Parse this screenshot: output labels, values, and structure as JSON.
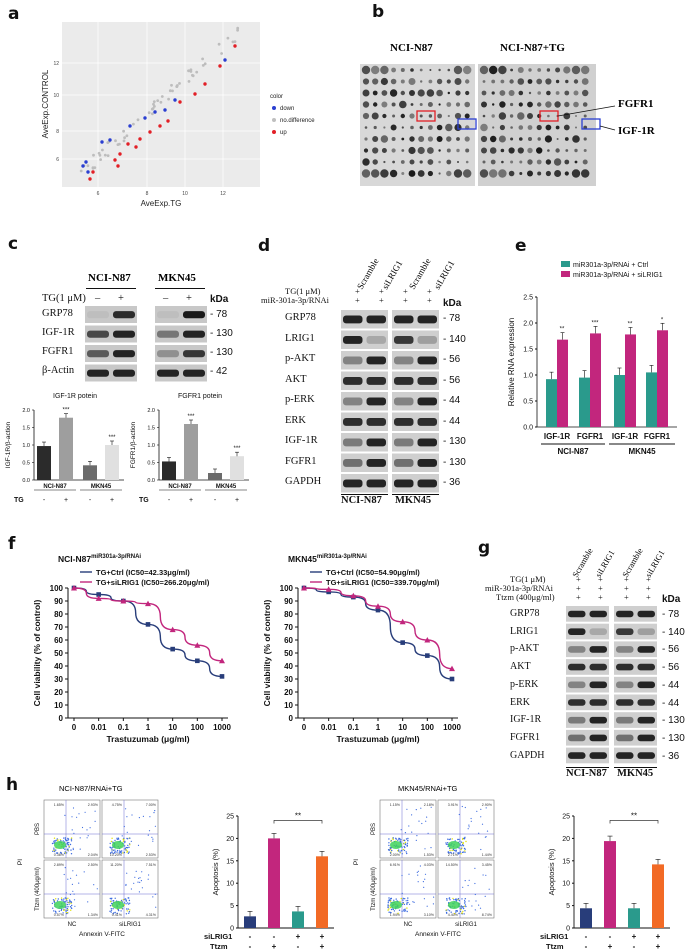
{
  "panels": {
    "a": "a",
    "b": "b",
    "c": "c",
    "d": "d",
    "e": "e",
    "f": "f",
    "g": "g",
    "h": "h"
  },
  "colors": {
    "teal": "#2a9a8c",
    "magenta": "#c2267d",
    "navy": "#283d7a",
    "orange": "#f26a25",
    "gray": "#9e9e9e",
    "dark": "#333333",
    "red": "#e21f26",
    "blue": "#2b3fd1"
  },
  "panel_a": {
    "xlabel": "AveExp.TG",
    "ylabel": "AveExp.CONTROL",
    "x_ticks": [
      "6",
      "8",
      "10",
      "12"
    ],
    "y_ticks": [
      "6",
      "8",
      "10",
      "12"
    ],
    "legend_title": "color",
    "legend_items": [
      "down",
      "no.difference",
      "up"
    ]
  },
  "panel_b": {
    "title_left": "NCI-N87",
    "title_right": "NCI-N87+TG",
    "label_fgfr1": "FGFR1",
    "label_igf1r": "IGF-1R"
  },
  "panel_c": {
    "cell_left": "NCI-N87",
    "cell_right": "MKN45",
    "treatment": "TG(1 μM)",
    "signs": [
      "–",
      "+",
      "–",
      "+"
    ],
    "kda": "kDa",
    "proteins": [
      {
        "name": "GRP78",
        "kda": "- 78"
      },
      {
        "name": "IGF-1R",
        "kda": "- 130"
      },
      {
        "name": "FGFR1",
        "kda": "- 130"
      },
      {
        "name": "β-Actin",
        "kda": "- 42"
      }
    ]
  },
  "chart_data": [
    {
      "type": "bar",
      "title": "IGF-1R potein",
      "ylabel": "IGF-1R/β-action",
      "ylim": [
        0,
        2.0
      ],
      "y_ticks": [
        "0.0",
        "0.5",
        "1.0",
        "1.5",
        "2.0"
      ],
      "categories": [
        "NCI-N87 −",
        "NCI-N87 +",
        "MKN45 −",
        "MKN45 +"
      ],
      "values": [
        0.97,
        1.78,
        0.42,
        1.0
      ],
      "group_labels": [
        "NCI-N87",
        "MKN45"
      ],
      "tg_label": "TG",
      "tg_signs": [
        "-",
        "+",
        "-",
        "+"
      ],
      "sig": [
        "",
        "***",
        "",
        "***"
      ]
    },
    {
      "type": "bar",
      "title": "FGFR1 potein",
      "ylabel": "FGFR1/β-action",
      "ylim": [
        0,
        2.0
      ],
      "y_ticks": [
        "0.0",
        "0.5",
        "1.0",
        "1.5",
        "2.0"
      ],
      "categories": [
        "NCI-N87 −",
        "NCI-N87 +",
        "MKN45 −",
        "MKN45 +"
      ],
      "values": [
        0.53,
        1.6,
        0.2,
        0.68
      ],
      "group_labels": [
        "NCI-N87",
        "MKN45"
      ],
      "tg_label": "TG",
      "tg_signs": [
        "-",
        "+",
        "-",
        "+"
      ],
      "sig": [
        "",
        "***",
        "",
        "***"
      ]
    },
    {
      "type": "bar",
      "ylabel": "Relative RNA expression",
      "ylim": [
        0,
        2.5
      ],
      "y_ticks": [
        "0.0",
        "0.5",
        "1.0",
        "1.5",
        "2.0",
        "2.5"
      ],
      "categories": [
        "IGF-1R",
        "FGFR1",
        "IGF-1R",
        "FGFR1"
      ],
      "group_labels": [
        "NCI-N87",
        "MKN45"
      ],
      "series": [
        {
          "name": "miR301a-3p/RNAi + Ctrl",
          "values": [
            0.92,
            0.95,
            1.0,
            1.05
          ]
        },
        {
          "name": "miR301a-3p/RNAi + siLRIG1",
          "values": [
            1.68,
            1.8,
            1.78,
            1.86
          ]
        }
      ],
      "sig": [
        "**",
        "***",
        "**",
        "*"
      ]
    },
    {
      "type": "line",
      "title_main": "NCI-N87",
      "title_sup": "miR301a-3p/RNAi",
      "xlabel": "Trastuzumab (μg/ml)",
      "ylabel": "Cell viability (% of control)",
      "ylim": [
        0,
        100
      ],
      "x_ticks": [
        "0",
        "0.01",
        "0.1",
        "1",
        "10",
        "100",
        "1000"
      ],
      "y_ticks": [
        "0",
        "10",
        "20",
        "30",
        "40",
        "50",
        "60",
        "70",
        "80",
        "90",
        "100"
      ],
      "series": [
        {
          "name": "TG+Ctrl (IC50=42.33μg/ml)",
          "values": [
            100,
            95,
            90,
            72,
            53,
            44,
            32
          ]
        },
        {
          "name": "TG+siLRIG1 (IC50=266.20μg/ml)",
          "values": [
            100,
            92,
            90,
            88,
            68,
            56,
            44
          ]
        }
      ]
    },
    {
      "type": "line",
      "title_main": "MKN45",
      "title_sup": "miR301a-3p/RNAi",
      "xlabel": "Trastuzumab (μg/ml)",
      "ylabel": "Cell viability (% of control)",
      "ylim": [
        0,
        100
      ],
      "x_ticks": [
        "0",
        "0.01",
        "0.1",
        "1",
        "10",
        "100",
        "1000"
      ],
      "y_ticks": [
        "0",
        "10",
        "20",
        "30",
        "40",
        "50",
        "60",
        "70",
        "80",
        "90",
        "100"
      ],
      "series": [
        {
          "name": "TG+Ctrl (IC50=54.90μg/ml)",
          "values": [
            100,
            97,
            93,
            83,
            58,
            48,
            30
          ]
        },
        {
          "name": "TG+siLRIG1 (IC50=339.70μg/ml)",
          "values": [
            100,
            99,
            94,
            86,
            74,
            60,
            38
          ]
        }
      ]
    },
    {
      "type": "bar",
      "ylabel": "Apoptosis (%)",
      "ylim": [
        0,
        25
      ],
      "y_ticks": [
        "0",
        "5",
        "10",
        "15",
        "20",
        "25"
      ],
      "values": [
        2.6,
        20.0,
        3.7,
        16.0
      ],
      "sig": "**",
      "row_labels": [
        "siLRIG1",
        "Ttzm"
      ],
      "row1": [
        "-",
        "-",
        "+",
        "+"
      ],
      "row2": [
        "-",
        "+",
        "-",
        "+"
      ]
    },
    {
      "type": "bar",
      "ylabel": "Apoptosis (%)",
      "ylim": [
        0,
        25
      ],
      "y_ticks": [
        "0",
        "5",
        "10",
        "15",
        "20",
        "25"
      ],
      "values": [
        4.4,
        19.4,
        4.4,
        14.2
      ],
      "sig": "**",
      "row_labels": [
        "siLRIG1",
        "Ttzm"
      ],
      "row1": [
        "-",
        "-",
        "+",
        "+"
      ],
      "row2": [
        "-",
        "+",
        "-",
        "+"
      ]
    }
  ],
  "panel_d": {
    "cols": [
      "Scramble",
      "siLRIG1",
      "Scramble",
      "siLRIG1"
    ],
    "row_labels": [
      "TG(1 μM)",
      "miR-301a-3p/RNAi"
    ],
    "signs": [
      "+",
      "+",
      "+",
      "+"
    ],
    "kda": "kDa",
    "cells": [
      "NCI-N87",
      "MKN45"
    ],
    "proteins": [
      {
        "name": "GRP78",
        "kda": "- 78"
      },
      {
        "name": "LRIG1",
        "kda": "- 140"
      },
      {
        "name": "p-AKT",
        "kda": "- 56"
      },
      {
        "name": "AKT",
        "kda": "- 56"
      },
      {
        "name": "p-ERK",
        "kda": "- 44"
      },
      {
        "name": "ERK",
        "kda": "- 44"
      },
      {
        "name": "IGF-1R",
        "kda": "- 130"
      },
      {
        "name": "FGFR1",
        "kda": "- 130"
      },
      {
        "name": "GAPDH",
        "kda": "- 36"
      }
    ]
  },
  "panel_g": {
    "cols": [
      "Scramble",
      "siLRIG1",
      "Scramble",
      "siLRIG1"
    ],
    "row_labels": [
      "TG(1 μM)",
      "miR-301a-3p/RNAi",
      "Ttzm (400μg/ml)"
    ],
    "signs": [
      "+",
      "+",
      "+",
      "+"
    ],
    "kda": "kDa",
    "cells": [
      "NCI-N87",
      "MKN45"
    ],
    "proteins": [
      {
        "name": "GRP78",
        "kda": "- 78"
      },
      {
        "name": "LRIG1",
        "kda": "- 140"
      },
      {
        "name": "p-AKT",
        "kda": "- 56"
      },
      {
        "name": "AKT",
        "kda": "- 56"
      },
      {
        "name": "p-ERK",
        "kda": "- 44"
      },
      {
        "name": "ERK",
        "kda": "- 44"
      },
      {
        "name": "IGF-1R",
        "kda": "- 130"
      },
      {
        "name": "FGFR1",
        "kda": "- 130"
      },
      {
        "name": "GAPDH",
        "kda": "- 36"
      }
    ]
  },
  "panel_h": {
    "left_title": "NCI-N87/RNAi+TG",
    "right_title": "MKN45/RNAi+TG",
    "xlabel": "Annexin V-FITC",
    "ylabel": "PI",
    "row_top": "PBS",
    "row_bottom": "Ttzm (400μg/ml)",
    "col_left": "NC",
    "col_right": "siLRIG1",
    "left_quads": [
      [
        "1.65%",
        "2.93%",
        "0.36%",
        "2.04%"
      ],
      [
        "4.75%",
        "7.00%",
        "10.20%",
        "2.53%"
      ],
      [
        "2.89%",
        "2.50%",
        "0.57%",
        "1.34%"
      ],
      [
        "11.20%",
        "7.51%",
        "0.41%",
        "4.31%"
      ]
    ],
    "right_quads": [
      [
        "1.15%",
        "2.18%",
        "2.00%",
        "1.53%"
      ],
      [
        "3.91%",
        "2.90%",
        "2.71%",
        "1.44%"
      ],
      [
        "6.91%",
        "4.03%",
        "1.94%",
        "3.10%"
      ],
      [
        "14.50%",
        "3.45%",
        "4.40%",
        "8.74%"
      ]
    ]
  }
}
